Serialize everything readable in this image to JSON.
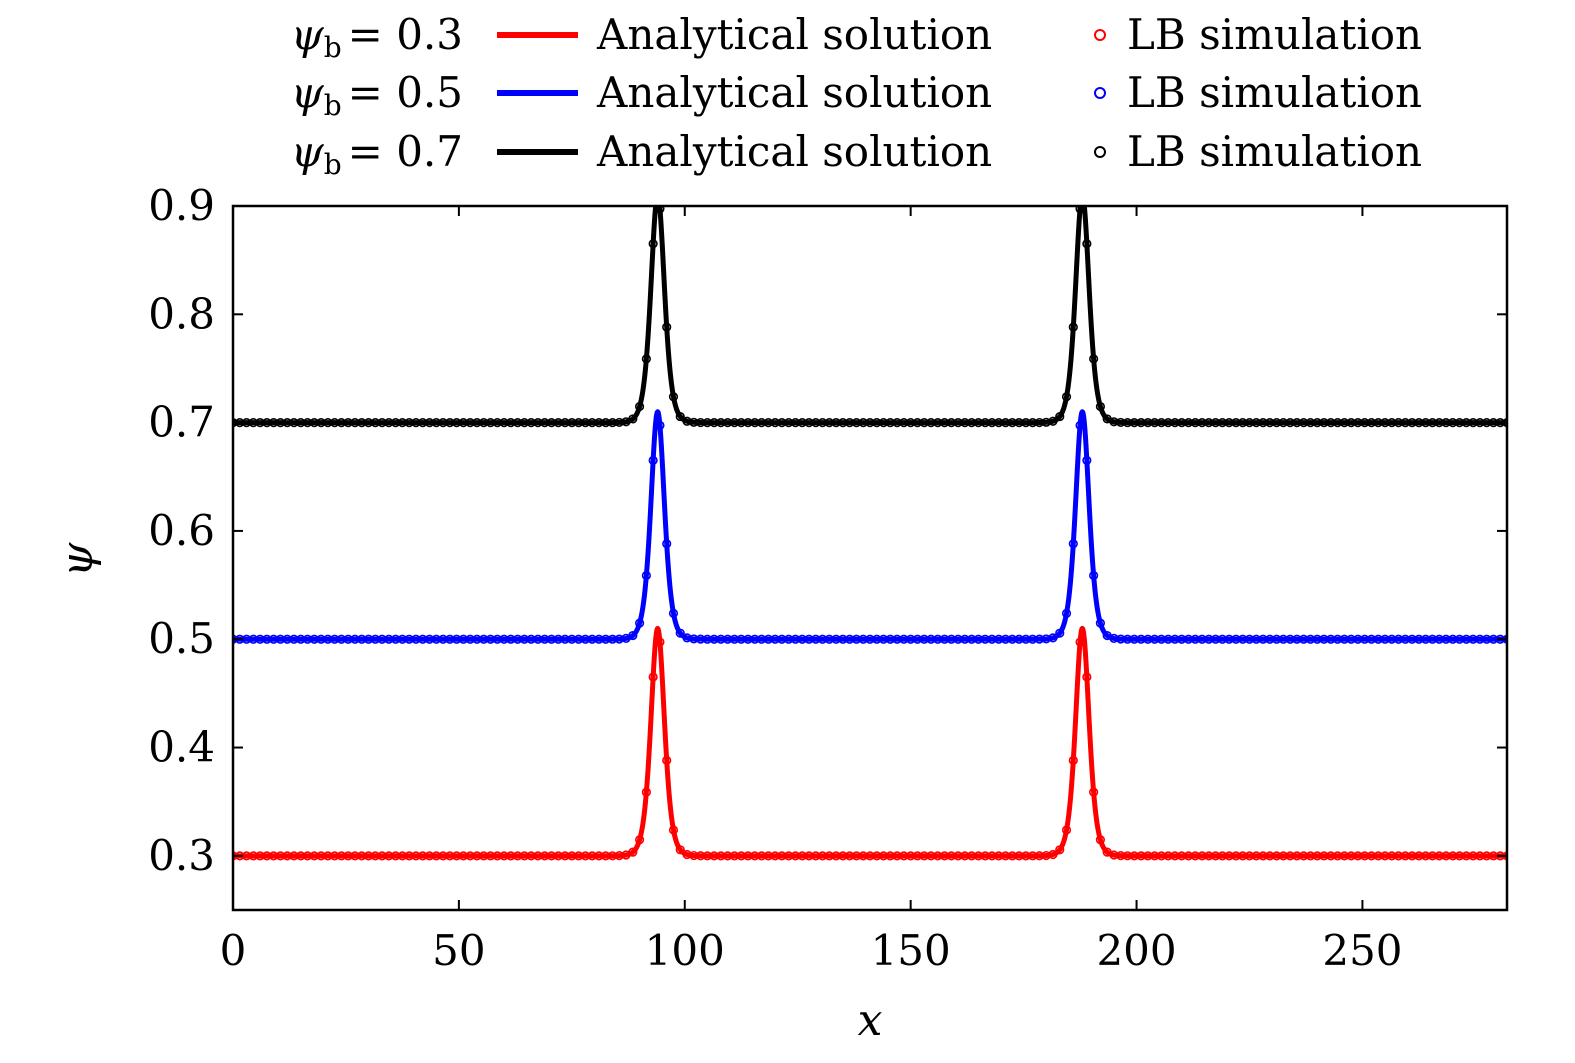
{
  "chart_data": {
    "type": "line",
    "title": "",
    "xlabel": "x",
    "ylabel": "ψ",
    "xlim": [
      0,
      282
    ],
    "ylim": [
      0.25,
      0.9
    ],
    "x_ticks": [
      0,
      50,
      100,
      150,
      200,
      250
    ],
    "y_ticks": [
      0.3,
      0.4,
      0.5,
      0.6,
      0.7,
      0.8,
      0.9
    ],
    "x_tick_labels": [
      "0",
      "50",
      "100",
      "150",
      "200",
      "250"
    ],
    "y_tick_labels": [
      "0.3",
      "0.4",
      "0.5",
      "0.6",
      "0.7",
      "0.8",
      "0.9"
    ],
    "grid": false,
    "legend_position": "top",
    "peak_centers": [
      94,
      188
    ],
    "peak_height_above_baseline": 0.21,
    "peak_width": 2.0,
    "marker_spacing": 1.5,
    "series": [
      {
        "name": "ψb = 0.3",
        "baseline": 0.3,
        "color": "#ff0000",
        "legend_label_math": "ψb = 0.3",
        "legend_line_label": "Analytical solution",
        "legend_marker_label": "LB simulation"
      },
      {
        "name": "ψb = 0.5",
        "baseline": 0.5,
        "color": "#0000ff",
        "legend_label_math": "ψb = 0.5",
        "legend_line_label": "Analytical solution",
        "legend_marker_label": "LB simulation"
      },
      {
        "name": "ψb = 0.7",
        "baseline": 0.7,
        "color": "#000000",
        "legend_label_math": "ψb = 0.7",
        "legend_line_label": "Analytical solution",
        "legend_marker_label": "LB simulation"
      }
    ]
  },
  "legend": {
    "rows": [
      {
        "psi": "ψ",
        "sub": "b",
        "eq": "= 0.3",
        "line": "Analytical solution",
        "marker": "LB simulation",
        "color": "#ff0000"
      },
      {
        "psi": "ψ",
        "sub": "b",
        "eq": "= 0.5",
        "line": "Analytical solution",
        "marker": "LB simulation",
        "color": "#0000ff"
      },
      {
        "psi": "ψ",
        "sub": "b",
        "eq": "= 0.7",
        "line": "Analytical solution",
        "marker": "LB simulation",
        "color": "#000000"
      }
    ]
  }
}
